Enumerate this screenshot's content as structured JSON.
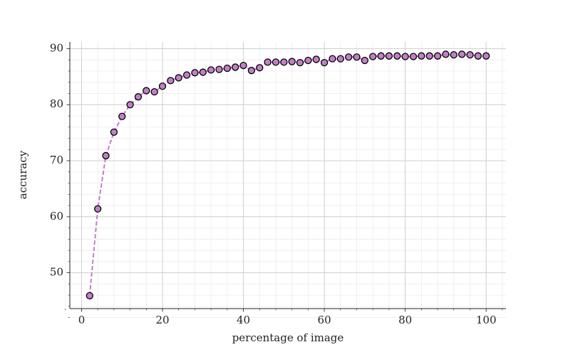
{
  "chart_data": {
    "type": "line",
    "xlabel": "percentage of image",
    "ylabel": "accuracy",
    "x": [
      2,
      4,
      6,
      8,
      10,
      12,
      14,
      16,
      18,
      20,
      22,
      24,
      26,
      28,
      30,
      32,
      34,
      36,
      38,
      40,
      42,
      44,
      46,
      48,
      50,
      52,
      54,
      56,
      58,
      60,
      62,
      64,
      66,
      68,
      70,
      72,
      74,
      76,
      78,
      80,
      82,
      84,
      86,
      88,
      90,
      92,
      94,
      96,
      98,
      100
    ],
    "values": [
      45.9,
      61.4,
      70.9,
      75.1,
      77.9,
      80.0,
      81.4,
      82.5,
      82.3,
      83.3,
      84.3,
      84.8,
      85.3,
      85.7,
      85.8,
      86.2,
      86.3,
      86.5,
      86.7,
      87.0,
      86.1,
      86.6,
      87.6,
      87.6,
      87.6,
      87.7,
      87.5,
      87.9,
      88.1,
      87.5,
      88.2,
      88.2,
      88.5,
      88.5,
      87.9,
      88.6,
      88.7,
      88.7,
      88.7,
      88.6,
      88.6,
      88.7,
      88.7,
      88.7,
      89.0,
      88.9,
      89.0,
      88.9,
      88.7,
      88.7
    ],
    "color": "#c27fc7",
    "marker_edgecolor": "#000000",
    "linestyle": "dashed",
    "xlim": [
      -2.9,
      104.9
    ],
    "ylim": [
      43.6,
      91.2
    ],
    "xticks": [
      0,
      20,
      40,
      60,
      80,
      100
    ],
    "yticks": [
      50,
      60,
      70,
      80,
      90
    ],
    "grid": true,
    "minor_grid": true
  }
}
